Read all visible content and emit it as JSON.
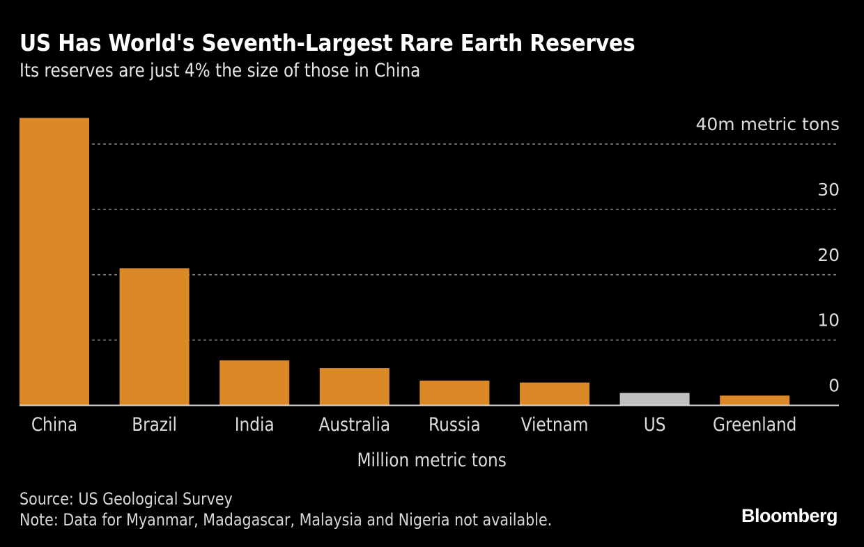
{
  "header": {
    "title": "US Has World's Seventh-Largest Rare Earth Reserves",
    "subtitle": "Its reserves are just 4% the size of those in China"
  },
  "footer": {
    "source": "Source: US Geological Survey",
    "note": "Note: Data for Myanmar, Madagascar, Malaysia and Nigeria not available.",
    "brand": "Bloomberg"
  },
  "colors": {
    "background": "#000000",
    "bar_default": "#DA8926",
    "bar_highlight": "#C0C0C0",
    "gridline": "#8a8a8a",
    "baseline": "#d9d9d9"
  },
  "chart_data": {
    "type": "bar",
    "title": "US Has World's Seventh-Largest Rare Earth Reserves",
    "subtitle": "Its reserves are just 4% the size of those in China",
    "xlabel": "Million metric tons",
    "ylabel": "",
    "categories": [
      "China",
      "Brazil",
      "India",
      "Australia",
      "Russia",
      "Vietnam",
      "US",
      "Greenland"
    ],
    "values": [
      44,
      21,
      6.9,
      5.7,
      3.8,
      3.5,
      1.9,
      1.5
    ],
    "highlight": [
      "US"
    ],
    "ylim": [
      0,
      40
    ],
    "yticks": [
      0,
      10,
      20,
      30,
      40
    ],
    "ytick_labels": [
      "0",
      "10",
      "20",
      "30",
      "40m metric tons"
    ],
    "y_axis_side": "right",
    "grid": true,
    "grid_style": "dotted",
    "legend": "none"
  }
}
